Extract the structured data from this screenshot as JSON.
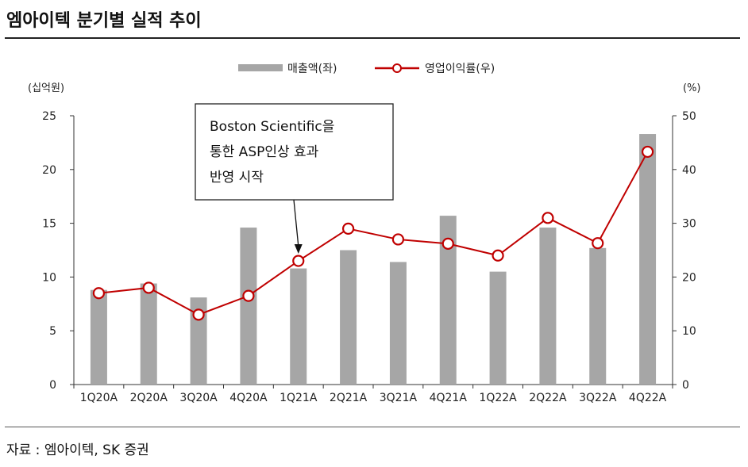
{
  "title": "엠아이텍 분기별 실적 추이",
  "source": "자료 : 엠아이텍, SK 증권",
  "chart_data": {
    "type": "bar+line",
    "categories": [
      "1Q20A",
      "2Q20A",
      "3Q20A",
      "4Q20A",
      "1Q21A",
      "2Q21A",
      "3Q21A",
      "4Q21A",
      "1Q22A",
      "2Q22A",
      "3Q22A",
      "4Q22A"
    ],
    "series": [
      {
        "name": "매출액(좌)",
        "type": "bar",
        "axis": "left",
        "color": "#a6a6a6",
        "values": [
          8.8,
          9.4,
          8.1,
          14.6,
          10.8,
          12.5,
          11.4,
          15.7,
          10.5,
          14.6,
          12.7,
          23.3
        ]
      },
      {
        "name": "영업이익률(우)",
        "type": "line",
        "axis": "right",
        "color": "#c00000",
        "values": [
          17.0,
          18.0,
          13.0,
          16.5,
          23.0,
          29.0,
          27.0,
          26.2,
          24.0,
          31.0,
          26.3,
          43.3
        ]
      }
    ],
    "left_axis": {
      "label": "(십억원)",
      "ylim": [
        0,
        25
      ],
      "ticks": [
        0,
        5,
        10,
        15,
        20,
        25
      ]
    },
    "right_axis": {
      "label": "(%)",
      "ylim": [
        0,
        50
      ],
      "ticks": [
        0,
        10,
        20,
        30,
        40,
        50
      ]
    },
    "legend_position": "top-center",
    "annotation": {
      "lines": [
        "Boston Scientific을",
        "통한 ASP인상 효과",
        "반영 시작"
      ],
      "points_to": "1Q21A"
    }
  }
}
